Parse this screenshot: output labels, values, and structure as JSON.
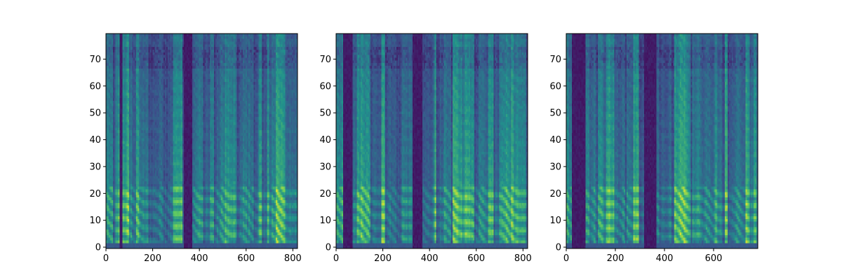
{
  "figure": {
    "background": "#ffffff",
    "colormap": "viridis",
    "colormap_stops": [
      "#440154",
      "#3b528b",
      "#21918c",
      "#5ec962",
      "#fde725"
    ]
  },
  "chart_data": [
    {
      "type": "heatmap",
      "title": "",
      "xlabel": "",
      "ylabel": "",
      "xlim": [
        0,
        820
      ],
      "ylim": [
        -0.5,
        79.5
      ],
      "xticks": [
        0,
        200,
        400,
        600,
        800
      ],
      "yticks": [
        0,
        10,
        20,
        30,
        40,
        50,
        60,
        70
      ],
      "frames": 820,
      "mel_bins": 80,
      "silent_frame_ranges": [
        [
          58,
          70
        ],
        [
          333,
          370
        ]
      ],
      "bright_band_range": [
        2,
        22
      ]
    },
    {
      "type": "heatmap",
      "title": "",
      "xlabel": "",
      "ylabel": "",
      "xlim": [
        0,
        820
      ],
      "ylim": [
        -0.5,
        79.5
      ],
      "xticks": [
        0,
        200,
        400,
        600,
        800
      ],
      "yticks": [
        0,
        10,
        20,
        30,
        40,
        50,
        60,
        70
      ],
      "frames": 820,
      "mel_bins": 80,
      "silent_frame_ranges": [
        [
          30,
          70
        ],
        [
          330,
          370
        ]
      ],
      "bright_band_range": [
        2,
        22
      ]
    },
    {
      "type": "heatmap",
      "title": "",
      "xlabel": "",
      "ylabel": "",
      "xlim": [
        0,
        780
      ],
      "ylim": [
        -0.5,
        79.5
      ],
      "xticks": [
        0,
        200,
        400,
        600
      ],
      "yticks": [
        0,
        10,
        20,
        30,
        40,
        50,
        60,
        70
      ],
      "frames": 780,
      "mel_bins": 80,
      "silent_frame_ranges": [
        [
          20,
          80
        ],
        [
          320,
          370
        ]
      ],
      "bright_band_range": [
        2,
        22
      ]
    }
  ]
}
